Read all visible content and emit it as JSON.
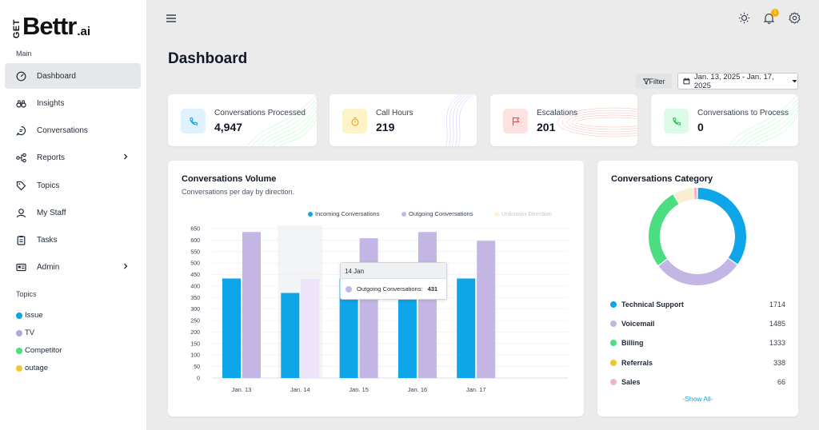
{
  "logo": {
    "get": "GET",
    "main": "Bettr",
    "ai": ".ai"
  },
  "sidebar": {
    "main_label": "Main",
    "items": [
      {
        "label": "Dashboard",
        "icon": "dashboard-gauge-icon",
        "active": true
      },
      {
        "label": "Insights",
        "icon": "binoculars-icon"
      },
      {
        "label": "Conversations",
        "icon": "chat-bubble-icon"
      },
      {
        "label": "Reports",
        "icon": "flow-chart-icon",
        "expandable": true
      },
      {
        "label": "Topics",
        "icon": "tag-icon"
      },
      {
        "label": "My Staff",
        "icon": "user-icon"
      },
      {
        "label": "Tasks",
        "icon": "clipboard-icon"
      },
      {
        "label": "Admin",
        "icon": "id-card-icon",
        "expandable": true
      }
    ],
    "topics_label": "Topics",
    "topics": [
      {
        "label": "Issue",
        "color": "#0ea5e9"
      },
      {
        "label": "TV",
        "color": "#b7a4dd"
      },
      {
        "label": "Competitor",
        "color": "#4ade80"
      },
      {
        "label": "outage",
        "color": "#f4c430"
      }
    ]
  },
  "header": {
    "menu_icon": "hamburger-icon",
    "theme_icon": "sun-icon",
    "notifications_icon": "bell-icon",
    "notification_count": "1",
    "settings_icon": "gear-icon"
  },
  "page": {
    "title": "Dashboard",
    "filter_label": "Filter",
    "date_range": "Jan. 13, 2025 - Jan. 17, 2025"
  },
  "kpis": [
    {
      "label": "Conversations Processed",
      "value": "4,947",
      "icon": "phone-icon",
      "bg": "#e0f2fe",
      "color": "#0ea5e9"
    },
    {
      "label": "Call Hours",
      "value": "219",
      "icon": "stopwatch-icon",
      "bg": "#fef3c7",
      "color": "#f59e0b"
    },
    {
      "label": "Escalations",
      "value": "201",
      "icon": "flag-icon",
      "bg": "#fee2e2",
      "color": "#ef4444"
    },
    {
      "label": "Conversations to Process",
      "value": "0",
      "icon": "phone-icon",
      "bg": "#dcfce7",
      "color": "#22c55e"
    }
  ],
  "volume": {
    "title": "Conversations Volume",
    "subtitle": "Conversations per day by direction.",
    "tooltip": {
      "date": "14 Jan",
      "series": "Outgoing Conversations:",
      "value": "431"
    }
  },
  "category": {
    "title": "Conversations Category",
    "items": [
      {
        "label": "Technical Support",
        "value": "1714",
        "color": "#0ea5e9"
      },
      {
        "label": "Voicemail",
        "value": "1485",
        "color": "#c3b6e4"
      },
      {
        "label": "Billing",
        "value": "1333",
        "color": "#4ade80"
      },
      {
        "label": "Referrals",
        "value": "338",
        "color": "#f4c430"
      },
      {
        "label": "Sales",
        "value": "66",
        "color": "#f0b6c8"
      }
    ],
    "show_all": "-Show All-"
  },
  "chart_data": [
    {
      "type": "bar",
      "title": "Conversations Volume",
      "subtitle": "Conversations per day by direction.",
      "categories": [
        "Jan. 13",
        "Jan. 14",
        "Jan. 15",
        "Jan. 16",
        "Jan. 17"
      ],
      "series": [
        {
          "name": "Incoming Conversations",
          "color": "#0ea5e9",
          "values": [
            433,
            370,
            433,
            433,
            433
          ]
        },
        {
          "name": "Outgoing Conversations",
          "color": "#c3b6e4",
          "values": [
            635,
            431,
            608,
            635,
            597
          ]
        },
        {
          "name": "Unknown Direction",
          "color": "#fdf2d6",
          "values": [
            0,
            0,
            0,
            0,
            0
          ]
        }
      ],
      "yticks": [
        0,
        50,
        100,
        150,
        200,
        250,
        300,
        350,
        400,
        450,
        500,
        550,
        600,
        650
      ],
      "ylim": [
        0,
        650
      ],
      "grid": true,
      "legend": "top-right"
    },
    {
      "type": "pie",
      "title": "Conversations Category",
      "categories": [
        "Technical Support",
        "Voicemail",
        "Billing",
        "Referrals",
        "Sales"
      ],
      "values": [
        1714,
        1485,
        1333,
        338,
        66
      ],
      "colors": [
        "#0ea5e9",
        "#c3b6e4",
        "#4ade80",
        "#fbeed0",
        "#f0b6c8"
      ],
      "donut": true
    }
  ]
}
